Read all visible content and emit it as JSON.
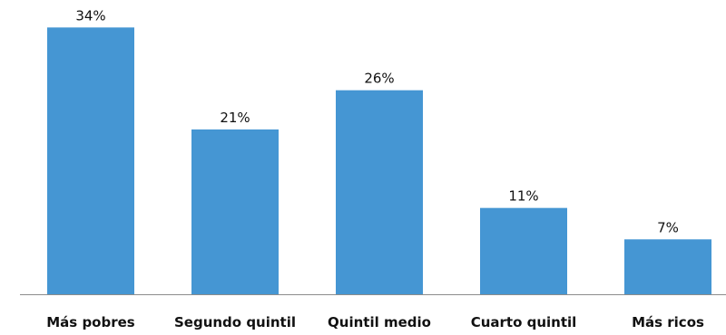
{
  "chart_data": {
    "type": "bar",
    "title": "",
    "xlabel": "",
    "ylabel": "",
    "categories": [
      "Más pobres",
      "Segundo quintil",
      "Quintil medio",
      "Cuarto quintil",
      "Más ricos"
    ],
    "values": [
      34,
      21,
      26,
      11,
      7
    ],
    "value_labels": [
      "34%",
      "21%",
      "26%",
      "11%",
      "7%"
    ],
    "ylim": [
      0,
      36
    ],
    "grid": false,
    "legend": "none",
    "colors": {
      "bar": "#4596D3",
      "axis": "#8C8C8C",
      "text": "#111111"
    }
  }
}
